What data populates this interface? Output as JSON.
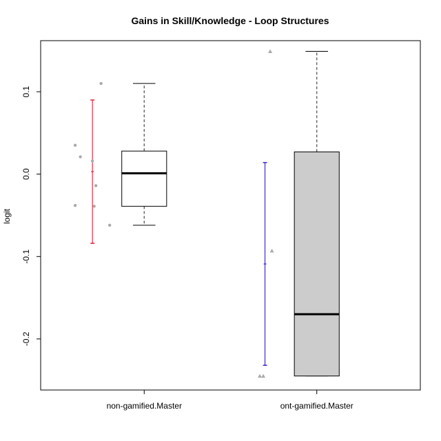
{
  "chart_data": {
    "type": "boxplot",
    "title": "Gains in Skill/Knowledge - Loop Structures",
    "xlabel": "",
    "ylabel": "logit",
    "ylim": [
      -0.262,
      0.162
    ],
    "yticks": [
      -0.2,
      -0.1,
      0.0,
      0.1
    ],
    "ytick_labels": [
      "-0.2",
      "-0.1",
      "0.0",
      "0.1"
    ],
    "categories": [
      "non-gamified.Master",
      "ont-gamified.Master"
    ],
    "grid": false,
    "groups": [
      {
        "label": "non-gamified.Master",
        "box": {
          "whisker_low": -0.062,
          "q1": -0.039,
          "median": 0.001,
          "q3": 0.028,
          "whisker_high": 0.11,
          "fill": "#ffffff"
        },
        "interval": {
          "low": -0.084,
          "mean": 0.003,
          "high": 0.09,
          "color": "#e8001c"
        },
        "points": [
          {
            "x_offset": -0.4,
            "y": 0.035
          },
          {
            "x_offset": -0.37,
            "y": 0.021
          },
          {
            "x_offset": -0.3,
            "y": 0.016
          },
          {
            "x_offset": -0.28,
            "y": -0.014
          },
          {
            "x_offset": -0.29,
            "y": -0.039
          },
          {
            "x_offset": -0.4,
            "y": -0.038
          },
          {
            "x_offset": -0.25,
            "y": 0.11
          },
          {
            "x_offset": -0.2,
            "y": -0.062
          }
        ],
        "point_shape": "circle",
        "point_color": "#aaaaaa"
      },
      {
        "label": "ont-gamified.Master",
        "box": {
          "whisker_low": -0.245,
          "q1": -0.245,
          "median": -0.17,
          "q3": 0.027,
          "whisker_high": 0.149,
          "fill": "#cccccc"
        },
        "interval": {
          "low": -0.232,
          "mean": -0.109,
          "high": 0.014,
          "color": "#2200cc"
        },
        "points": [
          {
            "x_offset": -0.27,
            "y": 0.149
          },
          {
            "x_offset": -0.26,
            "y": -0.093
          },
          {
            "x_offset": -0.33,
            "y": -0.245
          },
          {
            "x_offset": -0.31,
            "y": -0.245
          }
        ],
        "point_shape": "triangle",
        "point_color": "#aaaaaa"
      }
    ]
  }
}
